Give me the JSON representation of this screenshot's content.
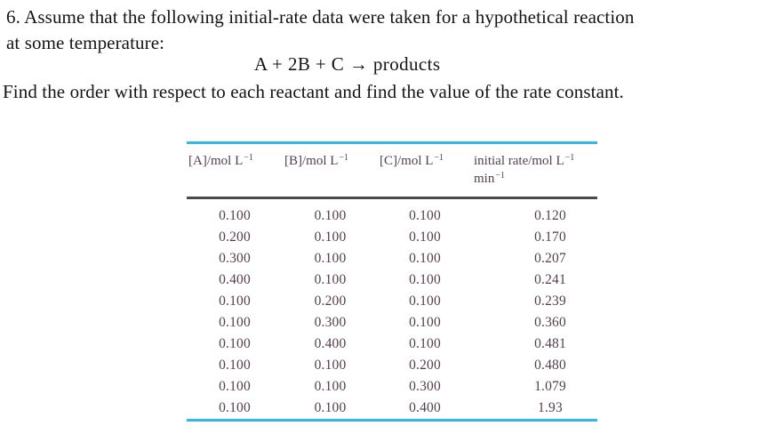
{
  "problem": {
    "statement_line1": "6. Assume that the following initial-rate data were taken for a hypothetical reaction",
    "statement_line2": "at some temperature:",
    "equation": "A + 2B + C → products",
    "question": "Find the order with respect to each reactant and find the value of the rate constant."
  },
  "table": {
    "headers": [
      {
        "base": "[A]/mol L",
        "sup": "−1"
      },
      {
        "base": "[B]/mol L",
        "sup": "−1"
      },
      {
        "base": "[C]/mol L",
        "sup": "−1"
      },
      {
        "base": "initial rate/mol L",
        "sup": "−1",
        "base2": "min",
        "sup2": "−1"
      }
    ],
    "rows": [
      [
        "0.100",
        "0.100",
        "0.100",
        "0.120"
      ],
      [
        "0.200",
        "0.100",
        "0.100",
        "0.170"
      ],
      [
        "0.300",
        "0.100",
        "0.100",
        "0.207"
      ],
      [
        "0.400",
        "0.100",
        "0.100",
        "0.241"
      ],
      [
        "0.100",
        "0.200",
        "0.100",
        "0.239"
      ],
      [
        "0.100",
        "0.300",
        "0.100",
        "0.360"
      ],
      [
        "0.100",
        "0.400",
        "0.100",
        "0.481"
      ],
      [
        "0.100",
        "0.100",
        "0.200",
        "0.480"
      ],
      [
        "0.100",
        "0.100",
        "0.300",
        "1.079"
      ],
      [
        "0.100",
        "0.100",
        "0.400",
        "1.93"
      ]
    ]
  },
  "colors": {
    "rule_accent": "#35b7e6",
    "rule_dark": "#4a4a4a",
    "table_text": "#533e4d",
    "body_text": "#141414",
    "page_bg": "#ffffff"
  }
}
